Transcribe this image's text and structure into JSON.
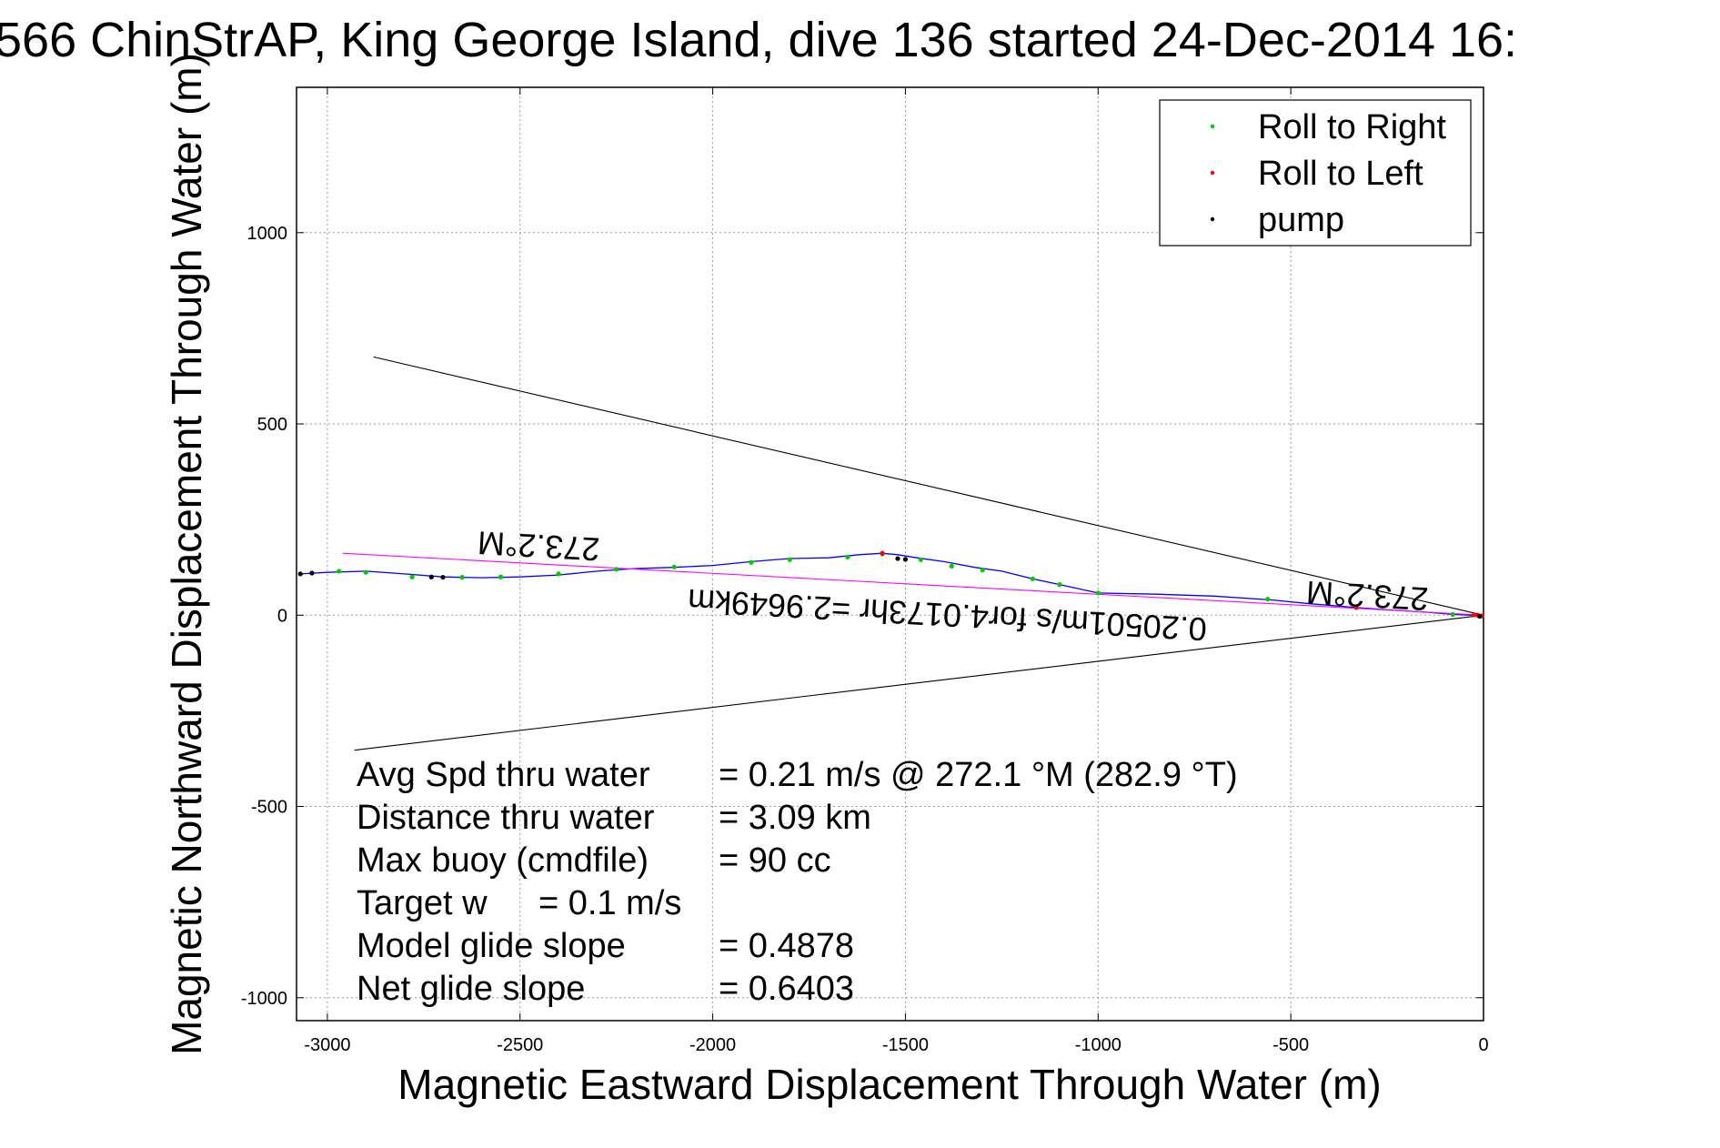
{
  "chart_data": {
    "type": "line",
    "title": "566 ChinStrAP, King George Island, dive 136 started 24-Dec-2014 16:",
    "xlabel": "Magnetic Eastward Displacement Through Water (m)",
    "ylabel": "Magnetic Northward Displacement Through Water (m)",
    "xlim": [
      -3080,
      0
    ],
    "ylim": [
      -1060,
      1380
    ],
    "xticks": [
      -3000,
      -2500,
      -2000,
      -1500,
      -1000,
      -500,
      0
    ],
    "xtick_labels": [
      "-3000",
      "-2500",
      "-2000",
      "-1500",
      "-1000",
      "-500",
      "0"
    ],
    "yticks": [
      -1000,
      -500,
      0,
      500,
      1000
    ],
    "ytick_labels": [
      "-1000",
      "-500",
      "0",
      "500",
      "1000"
    ],
    "grid": true,
    "legend_position": "top-right",
    "legend": [
      {
        "label": "Roll to Right",
        "color": "#00cc00"
      },
      {
        "label": "Roll to Left",
        "color": "#ff0000"
      },
      {
        "label": "pump",
        "color": "#000000"
      }
    ],
    "series": [
      {
        "color": "#0000ff",
        "x": [
          0,
          -30,
          -80,
          -150,
          -250,
          -330,
          -450,
          -550,
          -700,
          -850,
          -1000,
          -1100,
          -1170,
          -1250,
          -1320,
          -1400,
          -1470,
          -1520,
          -1560,
          -1620,
          -1700,
          -1800,
          -1900,
          -2000,
          -2100,
          -2200,
          -2300,
          -2400,
          -2500,
          -2600,
          -2700,
          -2800,
          -2900,
          -3000,
          -3070
        ],
        "y": [
          0,
          0,
          2,
          8,
          14,
          20,
          30,
          40,
          50,
          55,
          58,
          80,
          95,
          115,
          125,
          140,
          150,
          158,
          162,
          158,
          150,
          148,
          140,
          130,
          125,
          122,
          115,
          105,
          100,
          98,
          100,
          108,
          115,
          112,
          108
        ]
      },
      {
        "color": "#ff00ff",
        "x": [
          0,
          -2960
        ],
        "y": [
          0,
          162
        ]
      },
      {
        "color": "#000000",
        "x": [
          0,
          -2880
        ],
        "y": [
          0,
          675
        ]
      },
      {
        "color": "#000000",
        "x": [
          0,
          -2930
        ],
        "y": [
          0,
          -353
        ]
      }
    ],
    "markers": {
      "roll_right": {
        "color": "#00cc00",
        "x": [
          -80,
          -330,
          -560,
          -1000,
          -1100,
          -1170,
          -1300,
          -1380,
          -1460,
          -1560,
          -1650,
          -1800,
          -1900,
          -2100,
          -2250,
          -2400,
          -2550,
          -2650,
          -2780,
          -2900,
          -2970
        ],
        "y": [
          2,
          20,
          42,
          58,
          80,
          95,
          118,
          128,
          145,
          160,
          152,
          145,
          138,
          126,
          120,
          108,
          100,
          99,
          100,
          112,
          115
        ]
      },
      "roll_left": {
        "color": "#ff0000",
        "x": [
          -5,
          -15,
          -25,
          -330,
          -1560
        ],
        "y": [
          -2,
          0,
          1,
          20,
          162
        ]
      },
      "pump": {
        "color": "#000000",
        "x": [
          -10,
          -1520,
          -1500,
          -2730,
          -2700,
          -3040,
          -3070
        ],
        "y": [
          -3,
          148,
          146,
          100,
          99,
          110,
          108
        ]
      }
    },
    "annotations": [
      {
        "text": "273.2°M",
        "x": -2450,
        "y": 210,
        "rotated": true
      },
      {
        "text": "273.2°M",
        "x": -300,
        "y": 80,
        "rotated": true
      },
      {
        "text": "0.20501m/s for4.0173hr =2.9649km",
        "x": -1390,
        "y": 30,
        "rotated": true
      }
    ]
  },
  "stats": [
    {
      "label": "Avg Spd thru water",
      "value": "=  0.21 m/s @ 272.1 °M (282.9 °T)"
    },
    {
      "label": "Distance thru water",
      "value": "=  3.09 km"
    },
    {
      "label": "Max buoy (cmdfile)",
      "value": "= 90 cc"
    },
    {
      "label": "Target w",
      "value": "= 0.1 m/s"
    },
    {
      "label": "Model glide slope",
      "value": "= 0.4878"
    },
    {
      "label": "Net glide slope",
      "value": "= 0.6403"
    }
  ]
}
